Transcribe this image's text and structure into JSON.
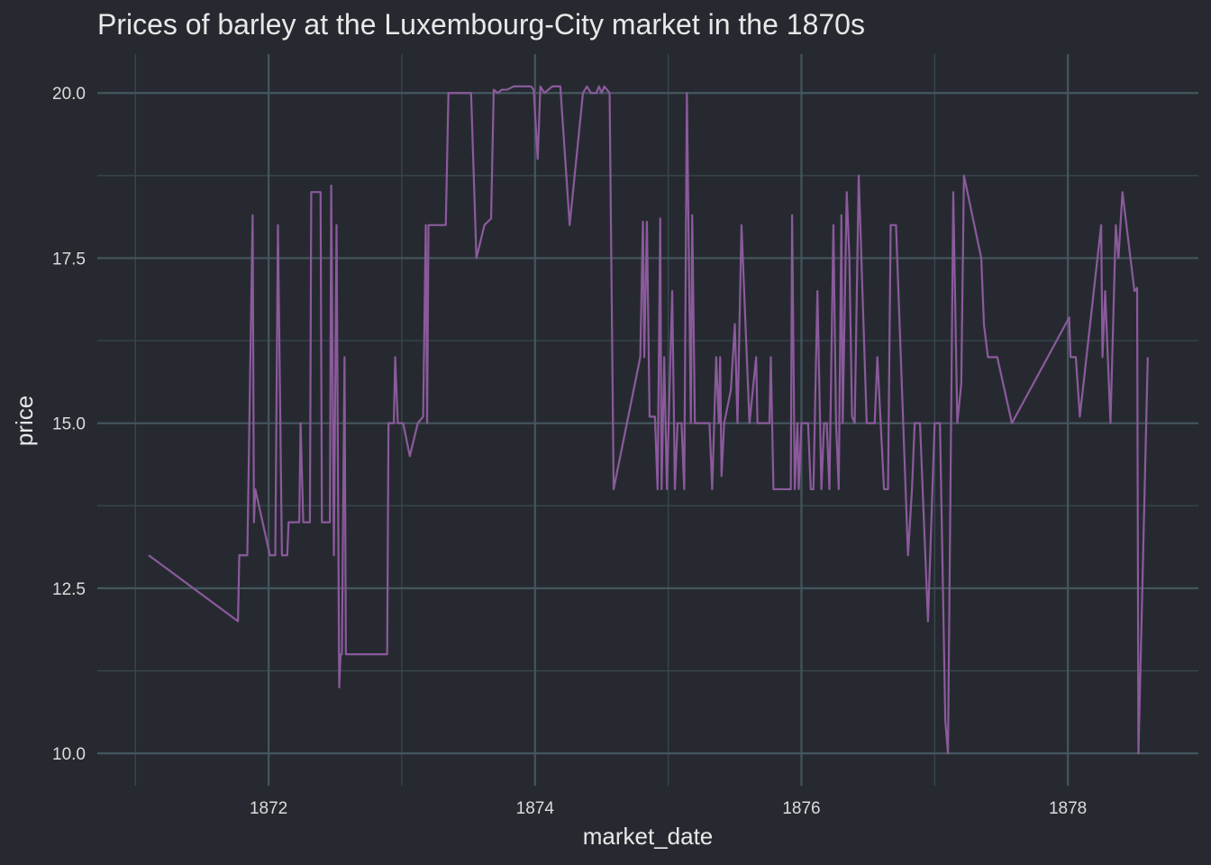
{
  "chart_data": {
    "type": "line",
    "title": "Prices of barley at the Luxembourg-City market in the 1870s",
    "x_label": "market_date",
    "y_label": "price",
    "xlim": [
      1870.714,
      1878.98
    ],
    "ylim": [
      9.51,
      20.59
    ],
    "xticks": [
      1872,
      1874,
      1876,
      1878
    ],
    "yticks": [
      {
        "value": 10,
        "label": "10.0"
      },
      {
        "value": 12.5,
        "label": "12.5"
      },
      {
        "value": 15,
        "label": "15.0"
      },
      {
        "value": 17.5,
        "label": "17.5"
      },
      {
        "value": 20,
        "label": "20.0"
      }
    ],
    "x_minor_ticks": [
      1871,
      1873,
      1875,
      1877
    ],
    "y_minor_ticks": [
      11.25,
      13.75,
      16.25,
      18.75
    ],
    "grid": true,
    "x": [
      1871.1,
      1871.77,
      1871.78,
      1871.84,
      1871.88,
      1871.89,
      1871.9,
      1872.01,
      1872.05,
      1872.07,
      1872.1,
      1872.14,
      1872.15,
      1872.23,
      1872.24,
      1872.26,
      1872.31,
      1872.32,
      1872.39,
      1872.4,
      1872.46,
      1872.47,
      1872.49,
      1872.51,
      1872.53,
      1872.54,
      1872.55,
      1872.57,
      1872.58,
      1872.89,
      1872.9,
      1872.94,
      1872.95,
      1872.97,
      1873.01,
      1873.06,
      1873.12,
      1873.16,
      1873.18,
      1873.19,
      1873.2,
      1873.33,
      1873.35,
      1873.52,
      1873.56,
      1873.62,
      1873.67,
      1873.69,
      1873.72,
      1873.75,
      1873.79,
      1873.84,
      1873.97,
      1873.99,
      1874.02,
      1874.04,
      1874.07,
      1874.13,
      1874.19,
      1874.26,
      1874.36,
      1874.39,
      1874.42,
      1874.46,
      1874.48,
      1874.5,
      1874.52,
      1874.56,
      1874.59,
      1874.79,
      1874.81,
      1874.82,
      1874.84,
      1874.86,
      1874.9,
      1874.92,
      1874.94,
      1874.95,
      1874.97,
      1874.99,
      1875.03,
      1875.05,
      1875.07,
      1875.1,
      1875.12,
      1875.14,
      1875.17,
      1875.18,
      1875.2,
      1875.31,
      1875.33,
      1875.36,
      1875.38,
      1875.39,
      1875.4,
      1875.42,
      1875.47,
      1875.5,
      1875.52,
      1875.55,
      1875.61,
      1875.66,
      1875.67,
      1875.76,
      1875.77,
      1875.79,
      1875.92,
      1875.93,
      1875.95,
      1875.97,
      1875.98,
      1876.0,
      1876.05,
      1876.07,
      1876.09,
      1876.12,
      1876.15,
      1876.17,
      1876.19,
      1876.21,
      1876.24,
      1876.26,
      1876.28,
      1876.3,
      1876.31,
      1876.34,
      1876.36,
      1876.38,
      1876.4,
      1876.43,
      1876.49,
      1876.55,
      1876.57,
      1876.62,
      1876.65,
      1876.67,
      1876.71,
      1876.8,
      1876.83,
      1876.85,
      1876.89,
      1876.95,
      1877.0,
      1877.04,
      1877.08,
      1877.1,
      1877.14,
      1877.17,
      1877.2,
      1877.22,
      1877.35,
      1877.37,
      1877.4,
      1877.47,
      1877.58,
      1878.01,
      1878.02,
      1878.06,
      1878.09,
      1878.25,
      1878.26,
      1878.28,
      1878.32,
      1878.36,
      1878.38,
      1878.41,
      1878.5,
      1878.52,
      1878.53,
      1878.6
    ],
    "series": [
      {
        "color": "#8b5a9c",
        "values": [
          13.0,
          12.0,
          13.0,
          13.0,
          18.15,
          13.5,
          14.0,
          13.0,
          13.0,
          18.0,
          13.0,
          13.0,
          13.5,
          13.5,
          15.0,
          13.5,
          13.5,
          18.5,
          18.5,
          13.5,
          13.5,
          18.6,
          13.0,
          18.0,
          11.0,
          11.5,
          11.5,
          16.0,
          11.5,
          11.5,
          15.0,
          15.0,
          16.0,
          15.0,
          15.0,
          14.5,
          15.0,
          15.1,
          18.0,
          15.0,
          18.0,
          18.0,
          20.0,
          20.0,
          17.5,
          18.0,
          18.1,
          20.05,
          20.0,
          20.05,
          20.05,
          20.1,
          20.1,
          20.05,
          19.0,
          20.1,
          20.0,
          20.1,
          20.1,
          18.0,
          20.0,
          20.1,
          20.0,
          20.0,
          20.1,
          20.0,
          20.1,
          20.0,
          14.0,
          16.0,
          18.05,
          16.0,
          18.05,
          15.1,
          15.1,
          14.0,
          18.1,
          14.0,
          16.0,
          14.0,
          17.0,
          14.0,
          15.0,
          15.0,
          14.0,
          20.0,
          15.0,
          18.15,
          15.0,
          15.0,
          14.0,
          16.0,
          15.0,
          16.0,
          14.2,
          15.0,
          15.5,
          16.5,
          15.0,
          18.0,
          15.0,
          16.0,
          15.0,
          15.0,
          16.0,
          14.0,
          14.0,
          18.15,
          14.0,
          15.0,
          14.0,
          15.0,
          15.0,
          14.0,
          14.0,
          17.0,
          14.0,
          15.0,
          15.0,
          14.0,
          18.0,
          15.0,
          14.0,
          18.15,
          15.0,
          18.5,
          17.5,
          15.1,
          15.0,
          18.75,
          15.0,
          15.0,
          16.0,
          14.0,
          14.0,
          18.0,
          18.0,
          13.0,
          14.0,
          15.0,
          15.0,
          12.0,
          15.0,
          15.0,
          10.5,
          10.0,
          18.5,
          15.0,
          15.6,
          18.75,
          17.5,
          16.5,
          16.0,
          16.0,
          15.0,
          16.6,
          16.0,
          16.0,
          15.1,
          18.0,
          16.0,
          17.0,
          15.0,
          18.0,
          17.5,
          18.5,
          17.0,
          17.05,
          10.0,
          16.0
        ]
      }
    ]
  }
}
